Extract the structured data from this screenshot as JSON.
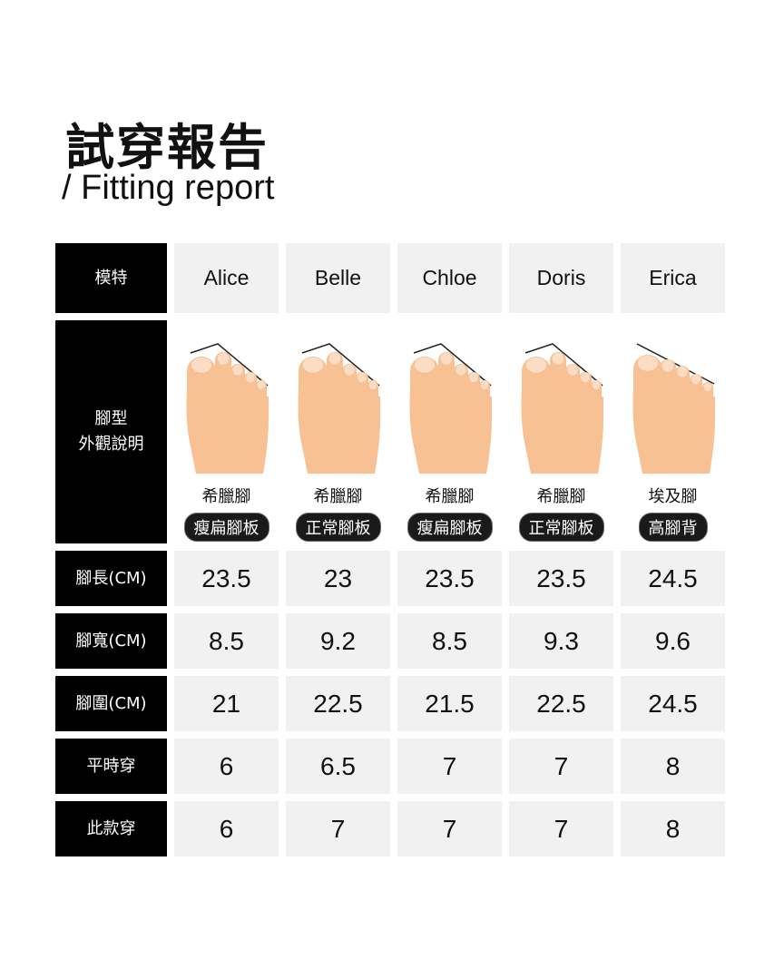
{
  "title": "試穿報告",
  "subtitle": "/ Fitting report",
  "colors": {
    "label_bg": "#000000",
    "cell_bg": "#f1f1f1",
    "skin": "#f7c193"
  },
  "labels": {
    "model": "模特",
    "foot_shape": "腳型\n外觀說明",
    "length": "腳長(CM)",
    "width": "腳寬(CM)",
    "girth": "腳圍(CM)",
    "usual": "平時穿",
    "this": "此款穿"
  },
  "models": [
    {
      "name": "Alice",
      "type": "希臘腳",
      "shape": "瘦扁腳板",
      "length": "23.5",
      "width": "8.5",
      "girth": "21",
      "usual": "6",
      "this": "6"
    },
    {
      "name": "Belle",
      "type": "希臘腳",
      "shape": "正常腳板",
      "length": "23",
      "width": "9.2",
      "girth": "22.5",
      "usual": "6.5",
      "this": "7"
    },
    {
      "name": "Chloe",
      "type": "希臘腳",
      "shape": "瘦扁腳板",
      "length": "23.5",
      "width": "8.5",
      "girth": "21.5",
      "usual": "7",
      "this": "7"
    },
    {
      "name": "Doris",
      "type": "希臘腳",
      "shape": "正常腳板",
      "length": "23.5",
      "width": "9.3",
      "girth": "22.5",
      "usual": "7",
      "this": "7"
    },
    {
      "name": "Erica",
      "type": "埃及腳",
      "shape": "高腳背",
      "length": "24.5",
      "width": "9.6",
      "girth": "24.5",
      "usual": "8",
      "this": "8"
    }
  ]
}
